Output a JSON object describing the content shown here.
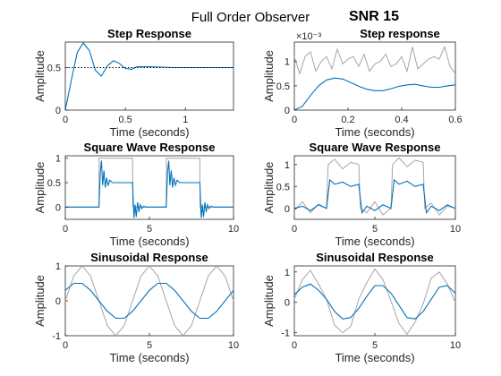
{
  "figure": {
    "suptitle": "Full Order Observer",
    "snr_label": "SNR 15",
    "colors": {
      "observer": "#0072bd",
      "measured": "#a6a6a6",
      "reference": "#000000",
      "axis": "#262626"
    }
  },
  "chart_data": [
    {
      "type": "line",
      "title": "Step Response",
      "xlabel": "Time (seconds)",
      "ylabel": "Amplitude",
      "xlim": [
        0,
        1.4
      ],
      "ylim": [
        0,
        0.8
      ],
      "xticks": [
        0,
        0.5,
        1
      ],
      "xtick_labels": [
        "0",
        "0.5",
        "1"
      ],
      "yticks": [
        0,
        0.5
      ],
      "ytick_labels": [
        "0",
        "0.5"
      ],
      "grid": false,
      "series": [
        {
          "role": "observer",
          "style": "solid",
          "x": [
            0,
            0.05,
            0.1,
            0.15,
            0.2,
            0.25,
            0.3,
            0.35,
            0.4,
            0.45,
            0.5,
            0.55,
            0.6,
            0.7,
            0.8,
            0.9,
            1.0,
            1.2,
            1.4
          ],
          "y": [
            0,
            0.35,
            0.68,
            0.79,
            0.7,
            0.47,
            0.4,
            0.52,
            0.58,
            0.55,
            0.49,
            0.48,
            0.51,
            0.51,
            0.505,
            0.5,
            0.5,
            0.5,
            0.5
          ]
        },
        {
          "role": "reference",
          "style": "dotted",
          "x": [
            0,
            1.4
          ],
          "y": [
            0.5,
            0.5
          ]
        }
      ]
    },
    {
      "type": "line",
      "title": "Step response",
      "xlabel": "Time (seconds)",
      "ylabel": "Amplitude",
      "xlim": [
        0,
        0.6
      ],
      "ylim": [
        0,
        1.4
      ],
      "xticks": [
        0,
        0.2,
        0.4,
        0.6
      ],
      "xtick_labels": [
        "0",
        "0.2",
        "0.4",
        "0.6"
      ],
      "yticks": [
        0,
        0.5,
        1
      ],
      "ytick_labels": [
        "0",
        "0.5",
        "1"
      ],
      "y_exponent": "×10⁻³",
      "grid": false,
      "series": [
        {
          "role": "measured",
          "style": "solid",
          "x": [
            0,
            0.02,
            0.04,
            0.06,
            0.08,
            0.1,
            0.12,
            0.14,
            0.16,
            0.18,
            0.2,
            0.22,
            0.24,
            0.26,
            0.28,
            0.3,
            0.32,
            0.34,
            0.36,
            0.38,
            0.4,
            0.42,
            0.44,
            0.46,
            0.48,
            0.5,
            0.52,
            0.54,
            0.56,
            0.58,
            0.6
          ],
          "y": [
            1.1,
            0.75,
            1.1,
            1.2,
            0.8,
            1.0,
            1.1,
            0.85,
            1.25,
            0.95,
            1.05,
            1.1,
            0.9,
            1.15,
            0.8,
            0.95,
            1.0,
            1.15,
            0.9,
            0.95,
            1.1,
            0.8,
            1.3,
            0.85,
            0.95,
            1.05,
            1.1,
            1.05,
            1.3,
            0.9,
            0.75
          ]
        },
        {
          "role": "observer",
          "style": "solid",
          "x": [
            0,
            0.03,
            0.06,
            0.09,
            0.12,
            0.15,
            0.18,
            0.21,
            0.24,
            0.27,
            0.3,
            0.33,
            0.36,
            0.39,
            0.42,
            0.45,
            0.48,
            0.51,
            0.54,
            0.57,
            0.6
          ],
          "y": [
            0,
            0.08,
            0.3,
            0.5,
            0.62,
            0.66,
            0.64,
            0.57,
            0.49,
            0.43,
            0.4,
            0.4,
            0.44,
            0.49,
            0.52,
            0.53,
            0.5,
            0.47,
            0.47,
            0.5,
            0.52
          ]
        }
      ]
    },
    {
      "type": "line",
      "title": "Square Wave Response",
      "xlabel": "Time (seconds)",
      "ylabel": "Amplitude",
      "xlim": [
        0,
        10
      ],
      "ylim": [
        -0.25,
        1.05
      ],
      "xticks": [
        0,
        5,
        10
      ],
      "xtick_labels": [
        "0",
        "5",
        "10"
      ],
      "yticks": [
        0,
        0.5,
        1
      ],
      "ytick_labels": [
        "0",
        "0.5",
        "1"
      ],
      "grid": false,
      "series": [
        {
          "role": "measured",
          "style": "solid",
          "x": [
            0,
            2,
            2.01,
            4,
            4.01,
            6,
            6.01,
            8,
            8.01,
            10
          ],
          "y": [
            0,
            0,
            1,
            1,
            0,
            0,
            1,
            1,
            0,
            0
          ]
        },
        {
          "role": "observer",
          "style": "solid",
          "x": [
            0,
            2,
            2.08,
            2.15,
            2.22,
            2.3,
            2.38,
            2.46,
            2.55,
            2.65,
            2.8,
            3.0,
            4.0,
            4.08,
            4.15,
            4.22,
            4.3,
            4.38,
            4.46,
            4.55,
            4.65,
            4.8,
            5.0,
            6.0,
            6.08,
            6.15,
            6.22,
            6.3,
            6.38,
            6.46,
            6.55,
            6.65,
            6.8,
            7.0,
            8.0,
            8.08,
            8.15,
            8.22,
            8.3,
            8.38,
            8.46,
            8.55,
            8.65,
            8.8,
            9.0,
            10
          ],
          "y": [
            0,
            0,
            0.72,
            0.95,
            0.45,
            0.75,
            0.4,
            0.6,
            0.45,
            0.55,
            0.5,
            0.5,
            0.5,
            -0.22,
            0.05,
            -0.2,
            0.1,
            -0.1,
            0.05,
            -0.03,
            0.02,
            0,
            0,
            0,
            0.72,
            0.95,
            0.45,
            0.75,
            0.4,
            0.6,
            0.45,
            0.55,
            0.5,
            0.5,
            0.5,
            -0.22,
            0.05,
            -0.2,
            0.1,
            -0.1,
            0.05,
            -0.03,
            0.02,
            0,
            0,
            0
          ]
        }
      ]
    },
    {
      "type": "line",
      "title": "Square Wave Response",
      "xlabel": "Time (seconds)",
      "ylabel": "Amplitude",
      "xlim": [
        0,
        10
      ],
      "ylim": [
        -0.25,
        1.2
      ],
      "xticks": [
        0,
        5,
        10
      ],
      "xtick_labels": [
        "0",
        "5",
        "10"
      ],
      "yticks": [
        0,
        0.5,
        1
      ],
      "ytick_labels": [
        "0",
        "0.5",
        "1"
      ],
      "grid": false,
      "series": [
        {
          "role": "measured",
          "style": "solid",
          "x": [
            0,
            0.5,
            1.0,
            1.5,
            2.0,
            2.1,
            2.5,
            3.0,
            3.5,
            4.0,
            4.1,
            4.5,
            5.0,
            5.5,
            6.0,
            6.1,
            6.5,
            7.0,
            7.5,
            8.0,
            8.1,
            8.5,
            9.0,
            9.5,
            10
          ],
          "y": [
            -0.05,
            0.15,
            -0.1,
            0.1,
            0.0,
            1.0,
            1.12,
            0.9,
            1.05,
            1.0,
            0.0,
            -0.1,
            0.15,
            -0.15,
            0.0,
            1.0,
            1.15,
            0.95,
            1.1,
            1.05,
            0.0,
            0.12,
            -0.15,
            0.05,
            0.0
          ]
        },
        {
          "role": "observer",
          "style": "solid",
          "x": [
            0,
            0.5,
            1.0,
            1.5,
            2.0,
            2.2,
            2.5,
            3.0,
            3.5,
            4.0,
            4.2,
            4.5,
            5.0,
            5.5,
            6.0,
            6.2,
            6.5,
            7.0,
            7.5,
            8.0,
            8.2,
            8.5,
            9.0,
            9.5,
            10
          ],
          "y": [
            0,
            0.05,
            -0.05,
            0.08,
            0.0,
            0.65,
            0.55,
            0.6,
            0.5,
            0.55,
            -0.1,
            0.05,
            -0.05,
            0.08,
            0.0,
            0.65,
            0.55,
            0.62,
            0.5,
            0.55,
            -0.1,
            0.05,
            -0.05,
            0.08,
            0.0
          ]
        }
      ]
    },
    {
      "type": "line",
      "title": "Sinusoidal Response",
      "xlabel": "Time (seconds)",
      "ylabel": "Amplitude",
      "xlim": [
        0,
        10
      ],
      "ylim": [
        -1,
        1
      ],
      "xticks": [
        0,
        5,
        10
      ],
      "xtick_labels": [
        "0",
        "5",
        "10"
      ],
      "yticks": [
        -1,
        0,
        1
      ],
      "ytick_labels": [
        "-1",
        "0",
        "1"
      ],
      "grid": false,
      "series": [
        {
          "role": "measured",
          "style": "solid",
          "x": [
            0,
            0.5,
            1,
            1.5,
            2,
            2.5,
            3,
            3.5,
            4,
            4.5,
            5,
            5.5,
            6,
            6.5,
            7,
            7.5,
            8,
            8.5,
            9,
            9.5,
            10
          ],
          "y": [
            0,
            0.71,
            1.0,
            0.71,
            0,
            -0.71,
            -1.0,
            -0.71,
            0,
            0.71,
            1.0,
            0.71,
            0,
            -0.71,
            -1.0,
            -0.71,
            0,
            0.71,
            1.0,
            0.71,
            0
          ]
        },
        {
          "role": "observer",
          "style": "solid",
          "x": [
            0,
            0.5,
            1,
            1.5,
            2,
            2.5,
            3,
            3.5,
            4,
            4.5,
            5,
            5.5,
            6,
            6.5,
            7,
            7.5,
            8,
            8.5,
            9,
            9.5,
            10
          ],
          "y": [
            0.3,
            0.5,
            0.5,
            0.3,
            0,
            -0.3,
            -0.5,
            -0.5,
            -0.3,
            0,
            0.3,
            0.5,
            0.5,
            0.3,
            0,
            -0.3,
            -0.5,
            -0.5,
            -0.3,
            0,
            0.3
          ]
        }
      ]
    },
    {
      "type": "line",
      "title": "Sinusoidal Response",
      "xlabel": "Time (seconds)",
      "ylabel": "Amplitude",
      "xlim": [
        0,
        10
      ],
      "ylim": [
        -1.1,
        1.2
      ],
      "xticks": [
        0,
        5,
        10
      ],
      "xtick_labels": [
        "0",
        "5",
        "10"
      ],
      "yticks": [
        -1,
        0,
        1
      ],
      "ytick_labels": [
        "-1",
        "0",
        "1"
      ],
      "grid": false,
      "series": [
        {
          "role": "measured",
          "style": "solid",
          "x": [
            0,
            0.5,
            1,
            1.5,
            2,
            2.5,
            3,
            3.5,
            4,
            4.5,
            5,
            5.5,
            6,
            6.5,
            7,
            7.5,
            8,
            8.5,
            9,
            9.5,
            10
          ],
          "y": [
            0.1,
            0.75,
            1.05,
            0.6,
            0.1,
            -0.75,
            -1.0,
            -0.8,
            0.1,
            0.65,
            1.1,
            0.75,
            0.05,
            -0.7,
            -1.05,
            -0.65,
            -0.05,
            0.8,
            1.0,
            0.6,
            0.0
          ]
        },
        {
          "role": "observer",
          "style": "solid",
          "x": [
            0,
            0.5,
            1,
            1.5,
            2,
            2.5,
            3,
            3.5,
            4,
            4.5,
            5,
            5.5,
            6,
            6.5,
            7,
            7.5,
            8,
            8.5,
            9,
            9.5,
            10
          ],
          "y": [
            0.25,
            0.5,
            0.6,
            0.4,
            0.1,
            -0.3,
            -0.55,
            -0.5,
            -0.2,
            0.2,
            0.55,
            0.55,
            0.3,
            -0.1,
            -0.5,
            -0.55,
            -0.3,
            0.1,
            0.5,
            0.55,
            0.3
          ]
        }
      ]
    }
  ]
}
